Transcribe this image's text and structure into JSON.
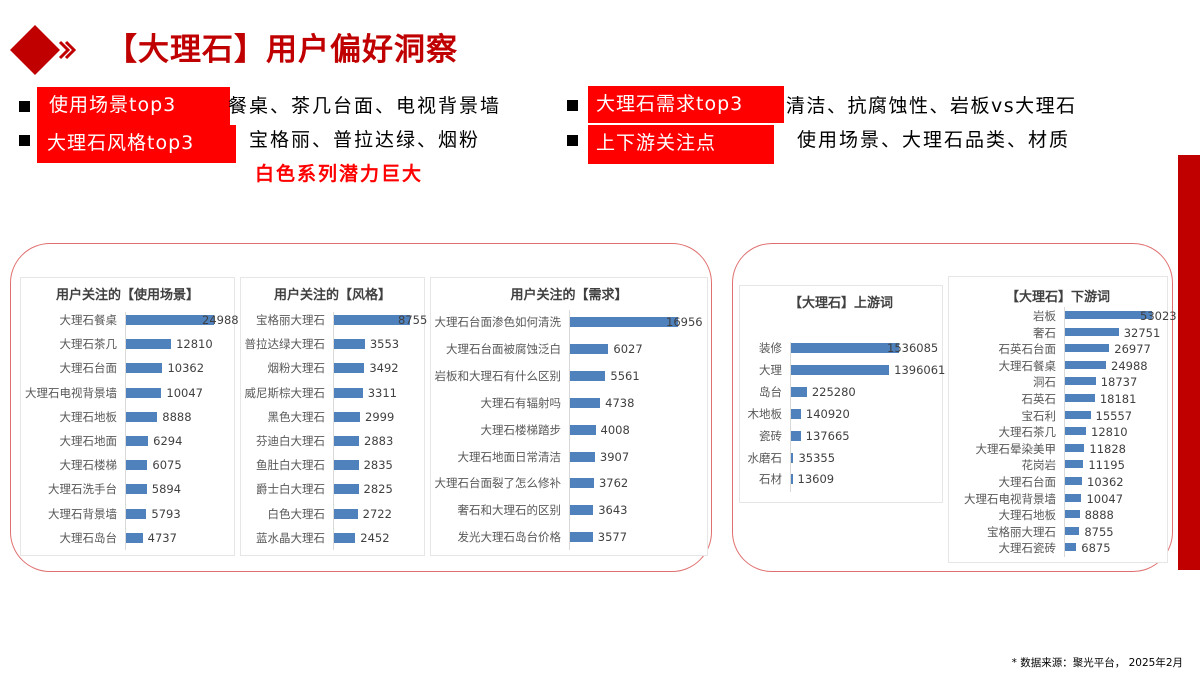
{
  "header": {
    "logo_icon": "red-diamond-chevron-icon",
    "title": "【大理石】用户偏好洞察",
    "accent_color": "#c00000"
  },
  "summary": {
    "items": [
      {
        "label": "使用场景top3",
        "text": "餐桌、茶几台面、电视背景墙"
      },
      {
        "label": "大理石风格top3",
        "text": "宝格丽、普拉达绿、烟粉"
      },
      {
        "label": "大理石需求top3",
        "text": "清洁、抗腐蚀性、岩板vs大理石"
      },
      {
        "label": "上下游关注点",
        "text": "使用场景、大理石品类、材质"
      }
    ],
    "highlight": "白色系列潜力巨大",
    "tag_color": "#ff0000"
  },
  "chart_data": [
    {
      "type": "bar",
      "orientation": "horizontal",
      "title": "用户关注的【使用场景】",
      "categories": [
        "大理石餐桌",
        "大理石茶几",
        "大理石台面",
        "大理石电视背景墙",
        "大理石地板",
        "大理石地面",
        "大理石楼梯",
        "大理石洗手台",
        "大理石背景墙",
        "大理石岛台"
      ],
      "values": [
        24988,
        12810,
        10362,
        10047,
        8888,
        6294,
        6075,
        5894,
        5793,
        4737
      ],
      "color": "#4f81bd"
    },
    {
      "type": "bar",
      "orientation": "horizontal",
      "title": "用户关注的【风格】",
      "categories": [
        "宝格丽大理石",
        "普拉达绿大理石",
        "烟粉大理石",
        "威尼斯棕大理石",
        "黑色大理石",
        "芬迪白大理石",
        "鱼肚白大理石",
        "爵士白大理石",
        "白色大理石",
        "蓝水晶大理石"
      ],
      "values": [
        8755,
        3553,
        3492,
        3311,
        2999,
        2883,
        2835,
        2825,
        2722,
        2452
      ],
      "color": "#4f81bd"
    },
    {
      "type": "bar",
      "orientation": "horizontal",
      "title": "用户关注的【需求】",
      "categories": [
        "大理石台面渗色如何清洗",
        "大理石台面被腐蚀泛白",
        "岩板和大理石有什么区别",
        "大理石有辐射吗",
        "大理石楼梯踏步",
        "大理石地面日常清洁",
        "大理石台面裂了怎么修补",
        "奢石和大理石的区别",
        "发光大理石岛台价格"
      ],
      "values": [
        16956,
        6027,
        5561,
        4738,
        4008,
        3907,
        3762,
        3643,
        3577
      ],
      "color": "#4f81bd"
    },
    {
      "type": "bar",
      "orientation": "horizontal",
      "title": "【大理石】上游词",
      "categories": [
        "装修",
        "大理",
        "岛台",
        "木地板",
        "瓷砖",
        "水磨石",
        "石材"
      ],
      "values": [
        1536085,
        1396061,
        225280,
        140920,
        137665,
        35355,
        13609
      ],
      "color": "#4f81bd"
    },
    {
      "type": "bar",
      "orientation": "horizontal",
      "title": "【大理石】下游词",
      "categories": [
        "岩板",
        "奢石",
        "石英石台面",
        "大理石餐桌",
        "洞石",
        "石英石",
        "宝石利",
        "大理石茶几",
        "大理石晕染美甲",
        "花岗岩",
        "大理石台面",
        "大理石电视背景墙",
        "大理石地板",
        "宝格丽大理石",
        "大理石瓷砖"
      ],
      "values": [
        53023,
        32751,
        26977,
        24988,
        18737,
        18181,
        15557,
        12810,
        11828,
        11195,
        10362,
        10047,
        8888,
        8755,
        6875
      ],
      "color": "#4f81bd"
    }
  ],
  "footer": {
    "source": "* 数据来源：聚光平台， 2025年2月"
  }
}
